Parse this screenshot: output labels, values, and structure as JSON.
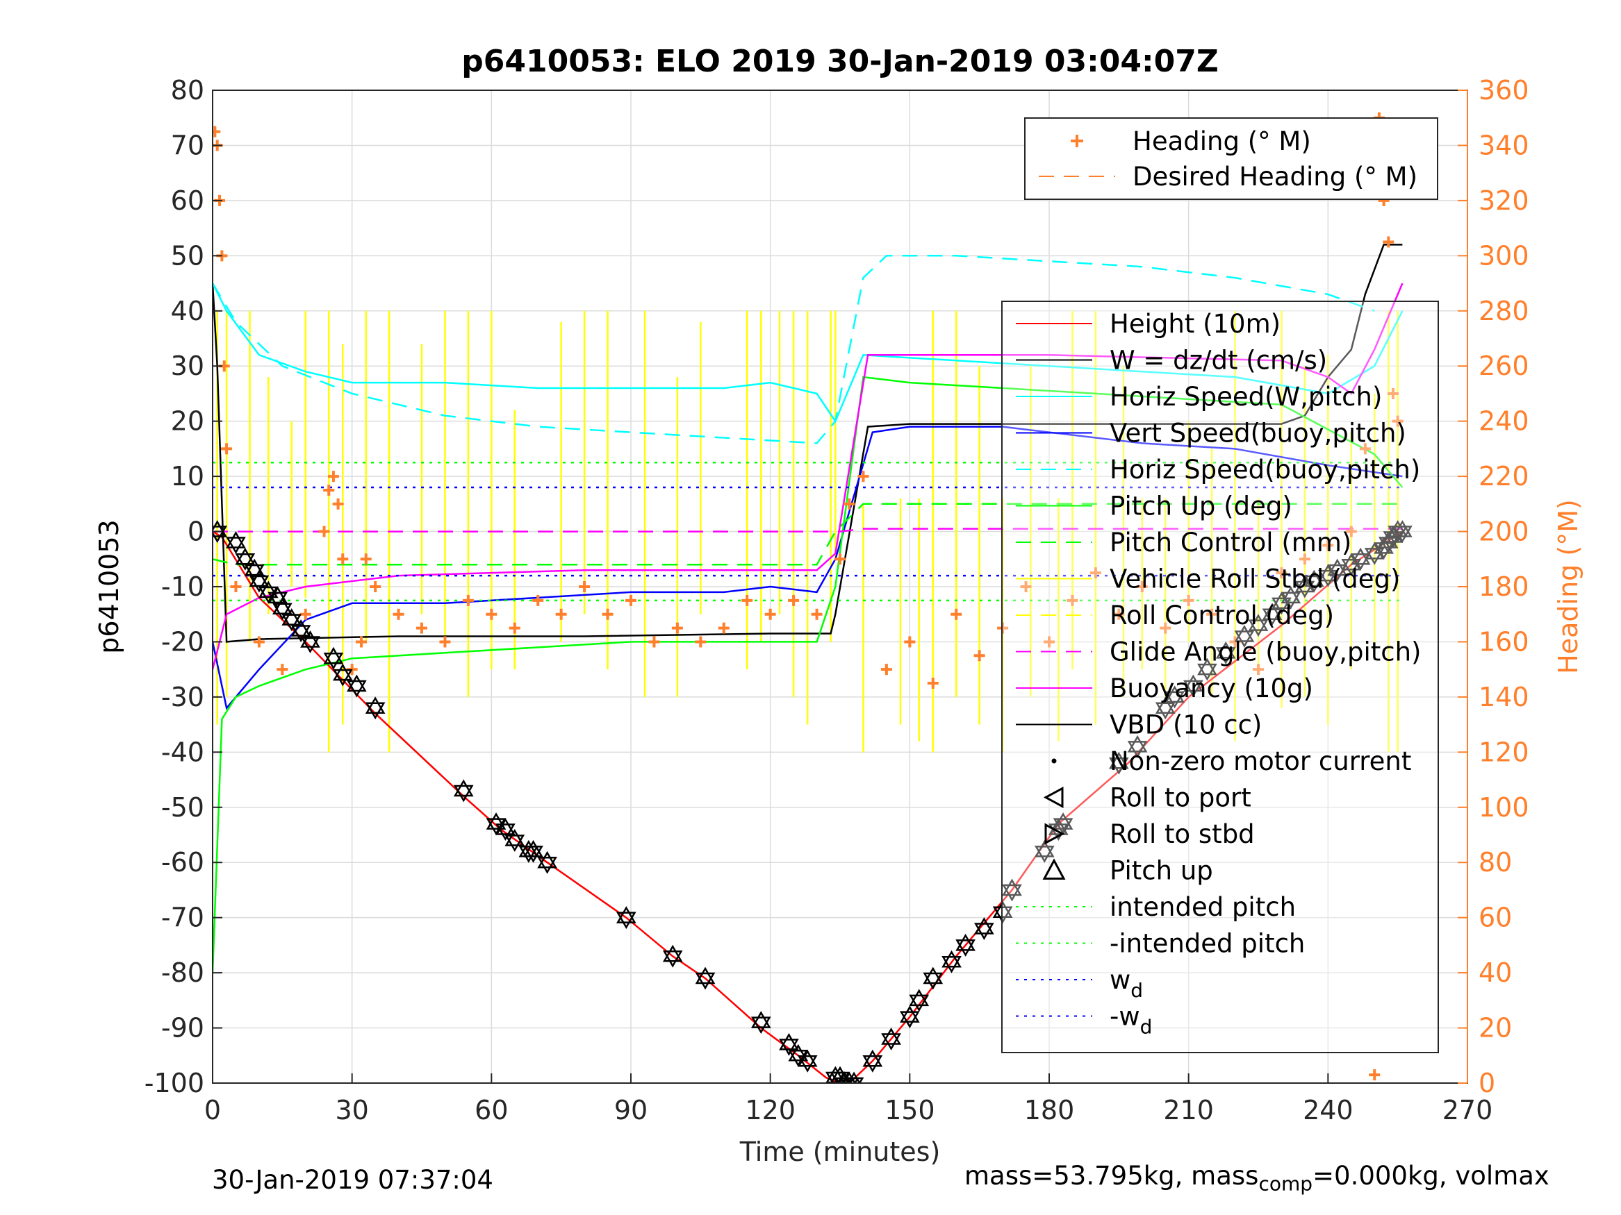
{
  "chart_data": {
    "type": "line",
    "title": "p6410053: ELO 2019 30-Jan-2019 03:04:07Z",
    "xlabel": "Time (minutes)",
    "ylabel": "p6410053",
    "ylabel_right": "Heading (°M)",
    "xlim": [
      0,
      270
    ],
    "ylim": [
      -100,
      80
    ],
    "ylim_right": [
      0,
      360
    ],
    "x_ticks": [
      "0",
      "30",
      "60",
      "90",
      "120",
      "150",
      "180",
      "210",
      "240",
      "270"
    ],
    "y_ticks": [
      "80",
      "70",
      "60",
      "50",
      "40",
      "30",
      "20",
      "10",
      "0",
      "-10",
      "-20",
      "-30",
      "-40",
      "-50",
      "-60",
      "-70",
      "-80",
      "-90",
      "-100"
    ],
    "y_ticks_right": [
      "360",
      "340",
      "320",
      "300",
      "280",
      "260",
      "240",
      "220",
      "200",
      "180",
      "160",
      "140",
      "120",
      "100",
      "80",
      "60",
      "40",
      "20",
      "0"
    ],
    "grid": true,
    "legend_top": {
      "placement": "top-right",
      "entries": [
        {
          "label": "Heading (° M)",
          "color": "#ff7f2a",
          "style": "plus"
        },
        {
          "label": "Desired Heading (° M)",
          "color": "#ff7f2a",
          "style": "dashed"
        }
      ]
    },
    "legend_main": {
      "placement": "right",
      "entries": [
        {
          "label": "Height (10m)",
          "color": "#ff0000",
          "style": "solid"
        },
        {
          "label": "W = dz/dt (cm/s)",
          "color": "#000000",
          "style": "solid"
        },
        {
          "label": "Horiz Speed(W,pitch)",
          "color": "#00ffff",
          "style": "solid"
        },
        {
          "label": "Vert Speed(buoy,pitch)",
          "color": "#0000ff",
          "style": "solid"
        },
        {
          "label": "Horiz Speed(buoy,pitch)",
          "color": "#00ffff",
          "style": "dashed"
        },
        {
          "label": "Pitch Up (deg)",
          "color": "#00ff00",
          "style": "solid"
        },
        {
          "label": "Pitch Control (mm)",
          "color": "#00ff00",
          "style": "dashed"
        },
        {
          "label": "Vehicle Roll Stbd (deg)",
          "color": "#ffff00",
          "style": "solid"
        },
        {
          "label": "Roll Control (deg)",
          "color": "#ffff00",
          "style": "dashed"
        },
        {
          "label": "Glide Angle (buoy,pitch)",
          "color": "#ff00ff",
          "style": "dashed"
        },
        {
          "label": "Buoyancy (10g)",
          "color": "#ff00ff",
          "style": "solid"
        },
        {
          "label": "VBD (10 cc)",
          "color": "#000000",
          "style": "solid"
        },
        {
          "label": "Non-zero motor current",
          "color": "#000000",
          "style": "dot"
        },
        {
          "label": "Roll to port",
          "color": "#000000",
          "style": "tri-left"
        },
        {
          "label": "Roll to stbd",
          "color": "#000000",
          "style": "tri-right"
        },
        {
          "label": "Pitch up",
          "color": "#000000",
          "style": "tri-up"
        },
        {
          "label": "intended pitch",
          "color": "#00ff00",
          "style": "dotted"
        },
        {
          "label": "-intended pitch",
          "color": "#00ff00",
          "style": "dotted"
        },
        {
          "label": "w",
          "sub": "d",
          "color": "#0000ff",
          "style": "dotted"
        },
        {
          "label": "-w",
          "sub": "d",
          "color": "#0000ff",
          "style": "dotted"
        }
      ]
    },
    "series": [
      {
        "name": "Height (10m)",
        "color": "#ff0000",
        "x": [
          0,
          2,
          10,
          20,
          35,
          54,
          62,
          72,
          89,
          99,
          106,
          118,
          126,
          132,
          135,
          137,
          142,
          150,
          160,
          172,
          182,
          197,
          210,
          230,
          245,
          256
        ],
        "y": [
          0,
          -1,
          -12,
          -20,
          -33,
          -48,
          -54,
          -60,
          -70,
          -77,
          -81,
          -90,
          -95,
          -99,
          -100,
          -100,
          -96,
          -88,
          -77,
          -65,
          -53,
          -42,
          -30,
          -17,
          -6,
          0
        ]
      },
      {
        "name": "W = dz/dt (cm/s)",
        "color": "#000000",
        "x": [
          0,
          1,
          3,
          10,
          40,
          80,
          120,
          133,
          134,
          141,
          150,
          180,
          230,
          235,
          240,
          245,
          248,
          252,
          256
        ],
        "y": [
          45,
          30,
          -20,
          -19.5,
          -19,
          -19,
          -18.5,
          -18.5,
          -15,
          19,
          19.5,
          19.5,
          19.5,
          21,
          28,
          33,
          43,
          52,
          52
        ]
      },
      {
        "name": "Horiz Speed(W,pitch)",
        "color": "#00ffff",
        "x": [
          0,
          3,
          10,
          20,
          30,
          50,
          70,
          90,
          110,
          120,
          130,
          134,
          140,
          160,
          180,
          200,
          220,
          240,
          250,
          256
        ],
        "y": [
          45,
          40,
          32,
          29,
          27,
          27,
          26,
          26,
          26,
          27,
          25,
          20,
          32,
          31,
          30,
          29,
          28,
          25,
          30,
          40
        ]
      },
      {
        "name": "Vert Speed(buoy,pitch)",
        "color": "#0000ff",
        "x": [
          0,
          3,
          10,
          20,
          30,
          50,
          70,
          90,
          110,
          120,
          130,
          134,
          142,
          150,
          170,
          180,
          200,
          220,
          240,
          256
        ],
        "y": [
          -20,
          -32,
          -25,
          -16,
          -13,
          -13,
          -12,
          -11,
          -11,
          -10,
          -11,
          -5,
          18,
          19,
          19,
          18,
          16,
          15,
          12,
          10
        ]
      },
      {
        "name": "Horiz Speed(buoy,pitch)",
        "color": "#00ffff",
        "x": [
          0,
          5,
          15,
          30,
          50,
          70,
          90,
          110,
          130,
          134,
          140,
          145,
          160,
          180,
          200,
          220,
          240,
          250
        ],
        "y": [
          45,
          38,
          30,
          25,
          21,
          19,
          18,
          17,
          16,
          20,
          46,
          50,
          50,
          49,
          48,
          46,
          43,
          40
        ]
      },
      {
        "name": "Pitch Up (deg)",
        "color": "#00ff00",
        "x": [
          0,
          2,
          5,
          10,
          20,
          30,
          50,
          70,
          90,
          110,
          130,
          134,
          140,
          150,
          170,
          190,
          210,
          230,
          250,
          256
        ],
        "y": [
          -80,
          -34,
          -30,
          -28,
          -25,
          -23,
          -22,
          -21,
          -20,
          -20,
          -20,
          -10,
          28,
          27,
          26,
          25,
          24,
          23,
          14,
          8
        ]
      },
      {
        "name": "Pitch Control (mm)",
        "color": "#00ff00",
        "x": [
          0,
          5,
          20,
          40,
          80,
          130,
          134,
          140,
          180,
          256
        ],
        "y": [
          -5,
          -6,
          -6,
          -6,
          -6,
          -6,
          0,
          5,
          5,
          5
        ]
      },
      {
        "name": "Glide Angle (buoy,pitch)",
        "color": "#ff00ff",
        "x": [
          0,
          135,
          140,
          256
        ],
        "y": [
          0,
          0,
          0.5,
          0.5
        ]
      },
      {
        "name": "Buoyancy (10g)",
        "color": "#ff00ff",
        "x": [
          0,
          3,
          10,
          20,
          40,
          80,
          130,
          134,
          141,
          180,
          230,
          240,
          245,
          250,
          256
        ],
        "y": [
          -25,
          -15,
          -12,
          -10,
          -8,
          -7,
          -7,
          -4,
          32,
          32,
          31,
          28,
          25,
          33,
          45
        ]
      },
      {
        "name": "intended pitch",
        "color": "#00ff00",
        "x": [
          0,
          256
        ],
        "y": [
          12.5,
          12.5
        ]
      },
      {
        "name": "-intended pitch",
        "color": "#00ff00",
        "x": [
          0,
          256
        ],
        "y": [
          -12.5,
          -12.5
        ]
      },
      {
        "name": "wd",
        "color": "#0000ff",
        "x": [
          0,
          256
        ],
        "y": [
          8,
          8
        ]
      },
      {
        "name": "-wd",
        "color": "#0000ff",
        "x": [
          0,
          256
        ],
        "y": [
          -8,
          -8
        ]
      }
    ],
    "heading_points": {
      "name": "Heading (° M)",
      "color": "#ff7f2a",
      "x": [
        0.5,
        1,
        1.5,
        2,
        2.5,
        3,
        5,
        10,
        15,
        20,
        24,
        25,
        26,
        27,
        28,
        30,
        32,
        33,
        35,
        40,
        45,
        50,
        55,
        60,
        65,
        70,
        75,
        80,
        85,
        90,
        95,
        100,
        105,
        110,
        115,
        120,
        125,
        130,
        135,
        137,
        140,
        145,
        150,
        155,
        160,
        165,
        170,
        175,
        180,
        185,
        190,
        195,
        200,
        205,
        210,
        215,
        220,
        225,
        230,
        235,
        240,
        245,
        248,
        250,
        251,
        252,
        253,
        254,
        255,
        250
      ],
      "y": [
        345,
        340,
        320,
        300,
        260,
        230,
        180,
        160,
        150,
        170,
        200,
        215,
        220,
        210,
        190,
        150,
        160,
        190,
        180,
        170,
        165,
        160,
        175,
        170,
        165,
        175,
        170,
        180,
        170,
        175,
        160,
        165,
        160,
        165,
        175,
        170,
        175,
        170,
        190,
        210,
        220,
        150,
        160,
        145,
        170,
        155,
        165,
        180,
        160,
        175,
        185,
        170,
        180,
        165,
        175,
        170,
        160,
        150,
        185,
        190,
        195,
        200,
        230,
        340,
        350,
        320,
        305,
        250,
        240,
        3
      ]
    },
    "marker_points": {
      "name": "Pitch up / Roll to port / Roll to stbd",
      "color": "#000000",
      "x": [
        1,
        5,
        7,
        9,
        10,
        12,
        14,
        15,
        17,
        19,
        21,
        26,
        28,
        31,
        35,
        54,
        61,
        63,
        65,
        68,
        69,
        72,
        89,
        99,
        106,
        118,
        124,
        126,
        128,
        134,
        135,
        136,
        137,
        138,
        142,
        146,
        150,
        152,
        155,
        159,
        162,
        166,
        170,
        172,
        179,
        182,
        183,
        195,
        199,
        205,
        207,
        211,
        214,
        218,
        222,
        225,
        228,
        230,
        232,
        235,
        237,
        240,
        242,
        245,
        247,
        250,
        252,
        253,
        254,
        255,
        256
      ],
      "y": [
        0,
        -2,
        -5,
        -7,
        -9,
        -11,
        -12,
        -14,
        -16,
        -18,
        -20,
        -23,
        -26,
        -28,
        -32,
        -47,
        -53,
        -54,
        -56,
        -58,
        -58,
        -60,
        -70,
        -77,
        -81,
        -89,
        -93,
        -95,
        -96,
        -99,
        -99,
        -100,
        -100,
        -100,
        -96,
        -92,
        -88,
        -85,
        -81,
        -78,
        -75,
        -72,
        -69,
        -65,
        -58,
        -54,
        -53,
        -42,
        -39,
        -32,
        -30,
        -28,
        -25,
        -22,
        -19,
        -17,
        -15,
        -13,
        -12,
        -10,
        -9,
        -8,
        -7,
        -6,
        -5,
        -4,
        -3,
        -2,
        -1,
        0,
        0
      ]
    },
    "roll_spikes": {
      "name": "Vehicle Roll Stbd (deg)",
      "color": "#ffff00",
      "x": [
        1,
        3,
        8,
        12,
        17,
        20,
        25,
        28,
        33,
        38,
        45,
        50,
        55,
        60,
        65,
        75,
        80,
        85,
        93,
        100,
        105,
        115,
        118,
        122,
        125,
        128,
        133,
        134,
        140,
        148,
        152,
        155,
        160,
        165,
        170,
        176,
        182,
        185,
        190,
        196,
        200,
        205,
        210,
        215,
        220,
        225,
        230,
        235,
        240,
        245,
        250,
        253,
        255
      ],
      "ymax": [
        40,
        40,
        40,
        28,
        20,
        40,
        40,
        34,
        40,
        40,
        34,
        40,
        40,
        40,
        22,
        38,
        40,
        40,
        40,
        28,
        38,
        40,
        40,
        40,
        40,
        40,
        40,
        40,
        5,
        6,
        6,
        40,
        40,
        30,
        6,
        30,
        6,
        40,
        40,
        30,
        6,
        6,
        20,
        15,
        40,
        6,
        40,
        30,
        32,
        18,
        25,
        40,
        40
      ],
      "ymin": [
        -35,
        -30,
        -20,
        -15,
        -10,
        -12,
        -40,
        -35,
        -20,
        -40,
        -15,
        -20,
        -30,
        -25,
        -25,
        -20,
        -15,
        -25,
        -30,
        -30,
        -15,
        -25,
        -20,
        -15,
        -30,
        -35,
        -20,
        -5,
        -40,
        -35,
        -38,
        -40,
        -30,
        -35,
        -40,
        -30,
        -38,
        -25,
        -35,
        -30,
        -25,
        -30,
        -20,
        -30,
        -38,
        -25,
        -32,
        -30,
        -35,
        -25,
        -20,
        -40,
        -40
      ]
    }
  },
  "footer": {
    "timestamp": "30-Jan-2019 07:37:04",
    "mass_text": "mass=53.795kg, mass",
    "mass_sub": "comp",
    "mass_rest": "=0.000kg, volmax"
  }
}
